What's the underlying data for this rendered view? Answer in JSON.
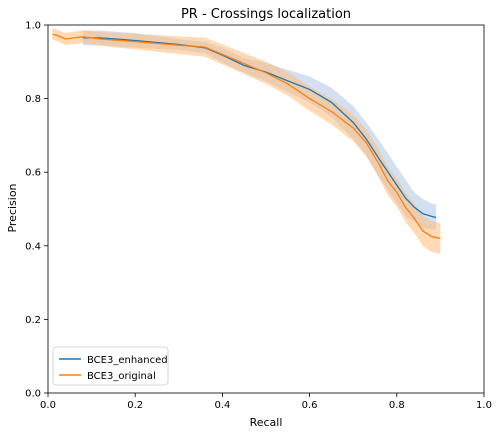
{
  "chart_data": {
    "type": "line",
    "title": "PR - Crossings localization",
    "xlabel": "Recall",
    "ylabel": "Precision",
    "xlim": [
      0.0,
      1.0
    ],
    "ylim": [
      0.0,
      1.0
    ],
    "xticks": [
      "0.0",
      "0.2",
      "0.4",
      "0.6",
      "0.8",
      "1.0"
    ],
    "yticks": [
      "0.0",
      "0.2",
      "0.4",
      "0.6",
      "0.8",
      "1.0"
    ],
    "grid": false,
    "legend_position": "lower-left",
    "series": [
      {
        "name": "BCE3_enhanced",
        "color": "#1f77b4",
        "band_color": "#aec7e8",
        "x": [
          0.08,
          0.12,
          0.2,
          0.3,
          0.36,
          0.4,
          0.45,
          0.5,
          0.55,
          0.6,
          0.65,
          0.7,
          0.73,
          0.76,
          0.78,
          0.8,
          0.82,
          0.84,
          0.86,
          0.88,
          0.89
        ],
        "y": [
          0.965,
          0.965,
          0.958,
          0.947,
          0.938,
          0.918,
          0.89,
          0.872,
          0.848,
          0.825,
          0.79,
          0.735,
          0.69,
          0.635,
          0.6,
          0.565,
          0.53,
          0.505,
          0.487,
          0.48,
          0.477
        ],
        "band": [
          0.02,
          0.02,
          0.02,
          0.015,
          0.015,
          0.02,
          0.02,
          0.025,
          0.03,
          0.035,
          0.04,
          0.045,
          0.045,
          0.05,
          0.05,
          0.05,
          0.05,
          0.04,
          0.04,
          0.035,
          0.035
        ]
      },
      {
        "name": "BCE3_original",
        "color": "#ff7f0e",
        "band_color": "#ffbb78",
        "x": [
          0.01,
          0.02,
          0.04,
          0.06,
          0.08,
          0.12,
          0.2,
          0.3,
          0.36,
          0.4,
          0.45,
          0.5,
          0.55,
          0.6,
          0.65,
          0.7,
          0.73,
          0.76,
          0.78,
          0.8,
          0.82,
          0.84,
          0.86,
          0.88,
          0.9
        ],
        "y": [
          0.975,
          0.972,
          0.962,
          0.965,
          0.968,
          0.962,
          0.955,
          0.945,
          0.94,
          0.92,
          0.895,
          0.87,
          0.84,
          0.8,
          0.765,
          0.72,
          0.68,
          0.62,
          0.575,
          0.545,
          0.505,
          0.475,
          0.44,
          0.425,
          0.42
        ]
      }
    ]
  }
}
